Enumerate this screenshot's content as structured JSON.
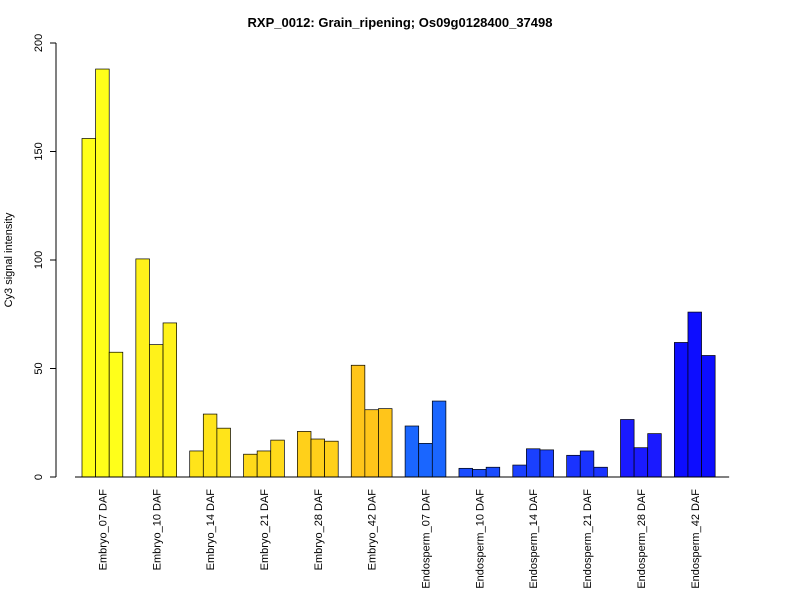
{
  "chart_data": {
    "type": "bar",
    "title": "RXP_0012: Grain_ripening; Os09g0128400_37498",
    "xlabel": "",
    "ylabel": "Cy3 signal intensity",
    "ylim": [
      0,
      200
    ],
    "yticks": [
      0,
      50,
      100,
      150,
      200
    ],
    "grid": false,
    "legend": "none",
    "categories": [
      "Embryo_07 DAF",
      "Embryo_10 DAF",
      "Embryo_14 DAF",
      "Embryo_21 DAF",
      "Embryo_28 DAF",
      "Embryo_42 DAF",
      "Endosperm_07 DAF",
      "Endosperm_10 DAF",
      "Endosperm_14 DAF",
      "Endosperm_21 DAF",
      "Endosperm_28 DAF",
      "Endosperm_42 DAF"
    ],
    "replicates": [
      [
        156,
        188,
        57.5
      ],
      [
        100.5,
        61,
        71
      ],
      [
        12,
        29,
        22.5
      ],
      [
        10.5,
        12,
        17
      ],
      [
        21,
        17.5,
        16.5
      ],
      [
        51.5,
        31,
        31.5
      ],
      [
        23.5,
        15.5,
        35
      ],
      [
        4,
        3.5,
        4.5
      ],
      [
        5.5,
        13,
        12.5
      ],
      [
        10,
        12,
        4.5
      ],
      [
        26.5,
        13.5,
        20
      ],
      [
        62,
        76,
        56
      ]
    ],
    "colors": [
      "#FFFF1A",
      "#FFF21A",
      "#FFE41A",
      "#FFDA1A",
      "#FFD01A",
      "#FFC51A",
      "#1A66FF",
      "#1A4CFF",
      "#1A40FF",
      "#1A33FF",
      "#1A1AFF",
      "#0D0DFF"
    ]
  }
}
